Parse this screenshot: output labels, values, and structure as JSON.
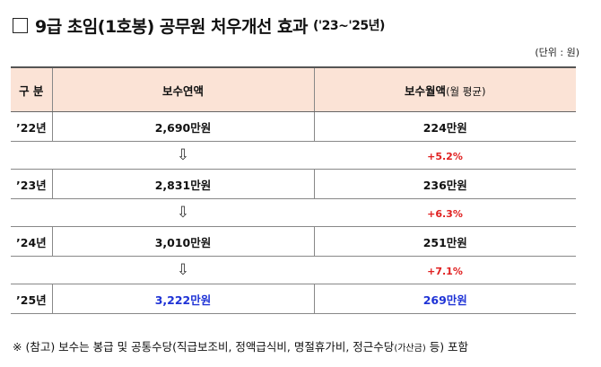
{
  "title": {
    "checkbox": "□",
    "main": "9급 초임(1호봉) 공무원 처우개선 효과",
    "period": "('23~'25년)"
  },
  "unit_note": "(단위 : 원)",
  "table": {
    "headers": {
      "category": "구 분",
      "annual": "보수연액",
      "monthly": "보수월액",
      "monthly_note": "(월 평균)"
    },
    "arrow_glyph": "⇩",
    "rows": [
      {
        "year": "’22년",
        "annual": "2,690만원",
        "monthly": "224만원"
      },
      {
        "year": "’23년",
        "annual": "2,831만원",
        "monthly": "236만원"
      },
      {
        "year": "’24년",
        "annual": "3,010만원",
        "monthly": "251만원"
      },
      {
        "year": "’25년",
        "annual": "3,222만원",
        "monthly": "269만원"
      }
    ],
    "increases": [
      "+5.2%",
      "+6.3%",
      "+7.1%"
    ],
    "highlight_color": "#1f33d6",
    "increase_color": "#e02020",
    "header_bg": "#fbe3d6"
  },
  "footnote": {
    "prefix": "※ (참고) 보수는 봉급 및 공통수당(직급보조비, 정액급식비, 명절휴가비, 정근수당",
    "small": "(가산금)",
    "suffix": " 등) 포함"
  }
}
